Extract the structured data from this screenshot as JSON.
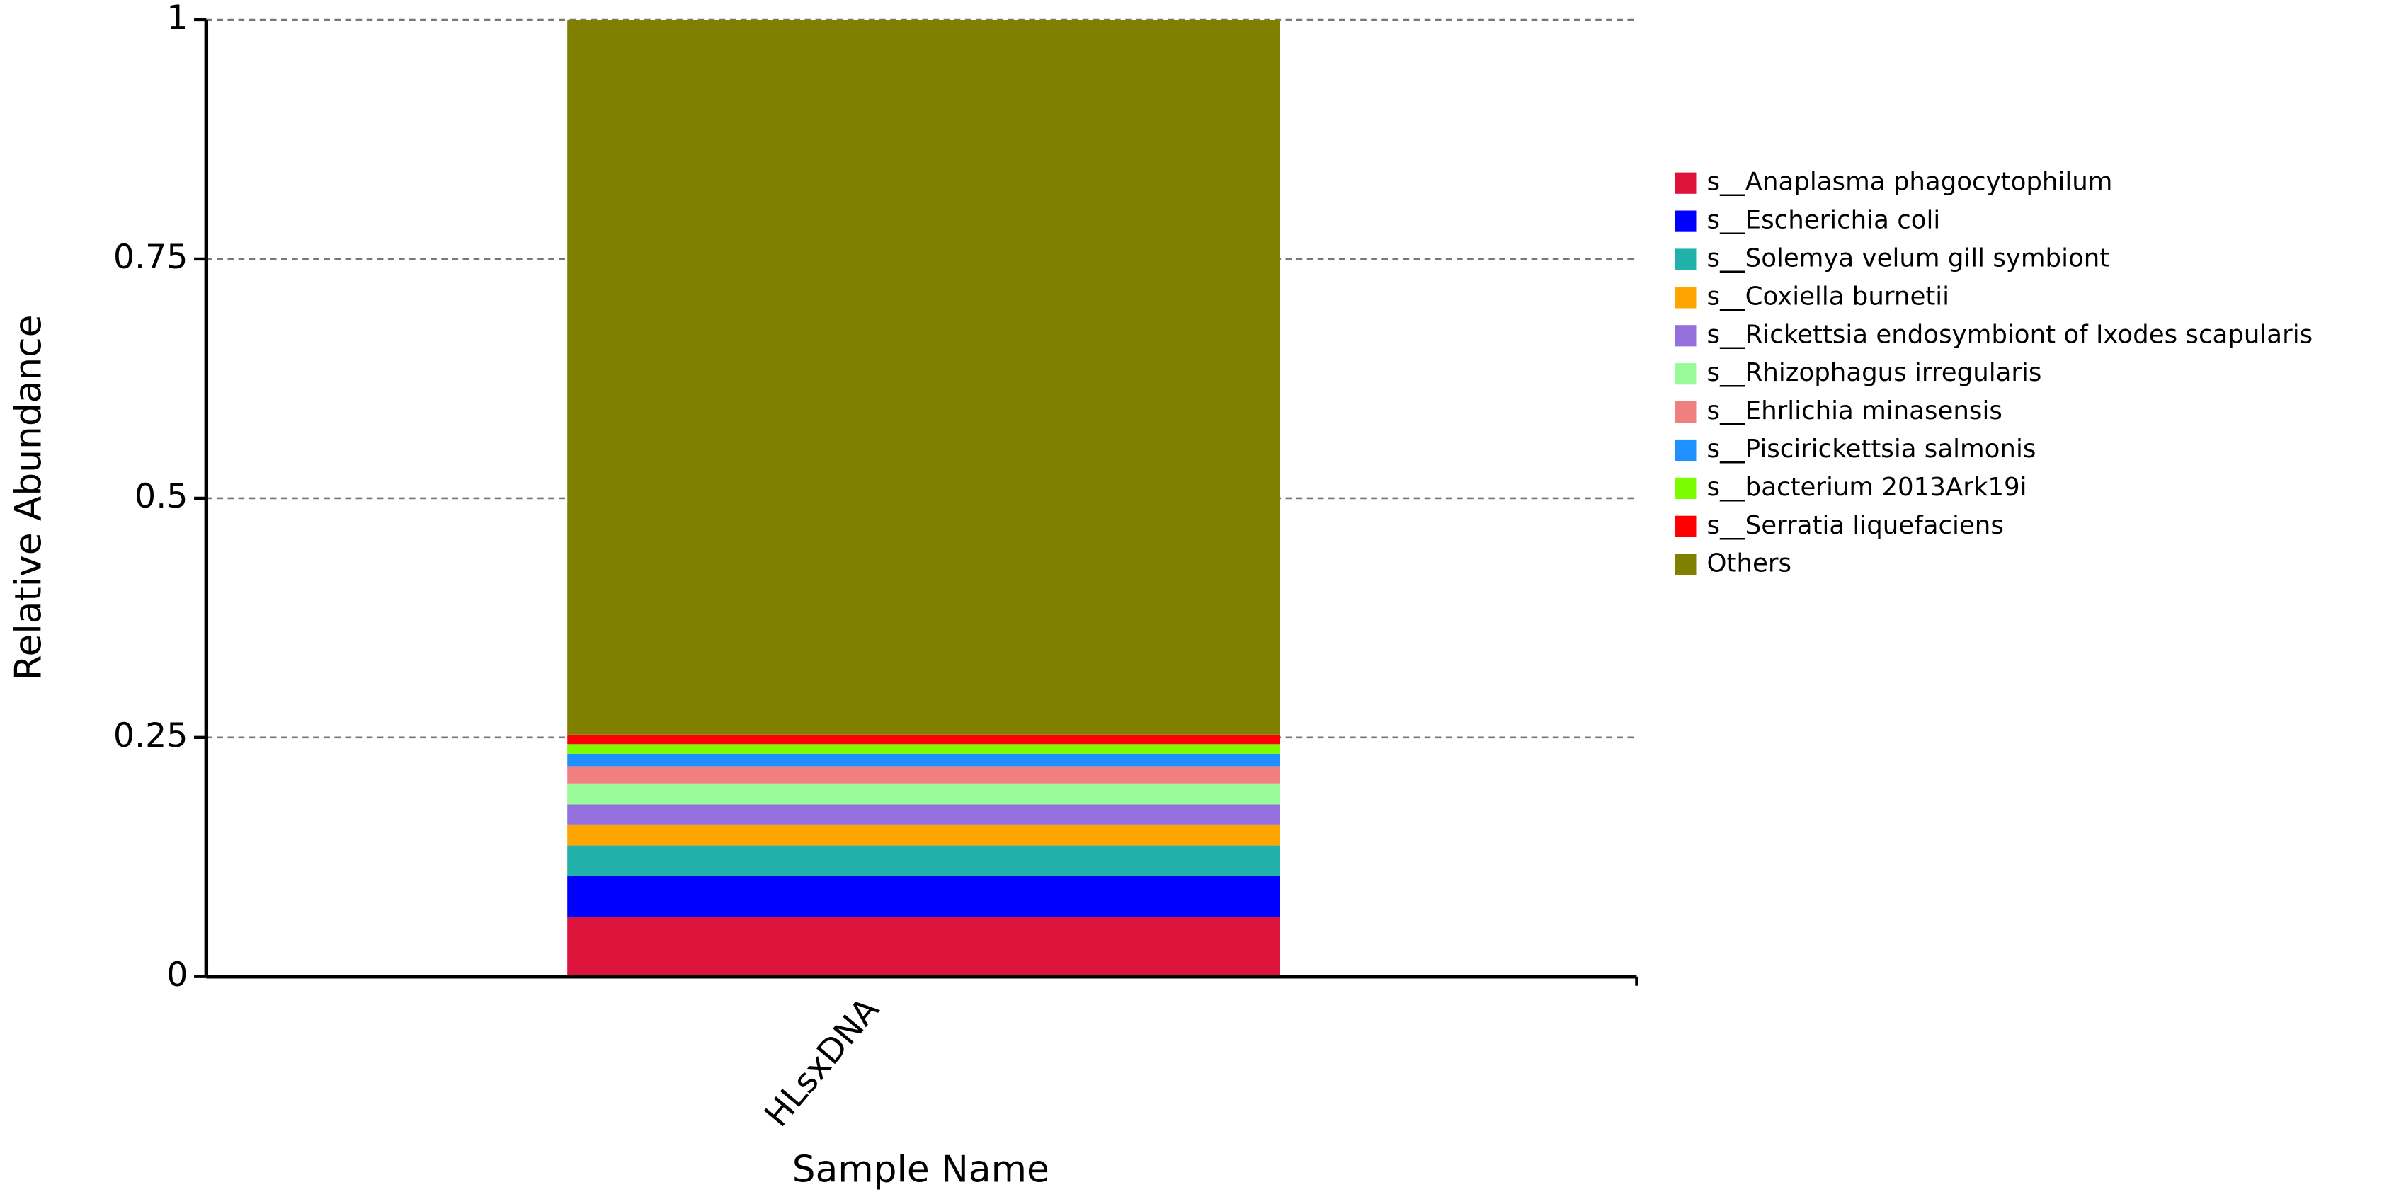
{
  "chart_data": {
    "type": "bar",
    "stacked": true,
    "y_label": "Relative Abundance",
    "x_label": "Sample Name",
    "categories": [
      "HLsxDNA"
    ],
    "ylim": [
      0,
      1
    ],
    "yticks": [
      0,
      0.25,
      0.5,
      0.75,
      1
    ],
    "grid": true,
    "legend": "right",
    "series": [
      {
        "name": "s__Anaplasma phagocytophilum",
        "color": "#dc143c",
        "values": [
          0.062
        ]
      },
      {
        "name": "s__Escherichia coli",
        "color": "#0000ff",
        "values": [
          0.043
        ]
      },
      {
        "name": "s__Solemya velum gill symbiont",
        "color": "#20b2aa",
        "values": [
          0.032
        ]
      },
      {
        "name": "s__Coxiella burnetii",
        "color": "#ffa500",
        "values": [
          0.022
        ]
      },
      {
        "name": "s__Rickettsia endosymbiont of Ixodes scapularis",
        "color": "#9370db",
        "values": [
          0.021
        ]
      },
      {
        "name": "s__Rhizophagus irregularis",
        "color": "#98fb98",
        "values": [
          0.022
        ]
      },
      {
        "name": "s__Ehrlichia minasensis",
        "color": "#f08080",
        "values": [
          0.018
        ]
      },
      {
        "name": "s__Piscirickettsia salmonis",
        "color": "#1e90ff",
        "values": [
          0.013
        ]
      },
      {
        "name": "s__bacterium 2013Ark19i",
        "color": "#7cfc00",
        "values": [
          0.01
        ]
      },
      {
        "name": "s__Serratia liquefaciens",
        "color": "#ff0000",
        "values": [
          0.01
        ]
      },
      {
        "name": "Others",
        "color": "#808000",
        "values": [
          0.747
        ]
      }
    ]
  }
}
